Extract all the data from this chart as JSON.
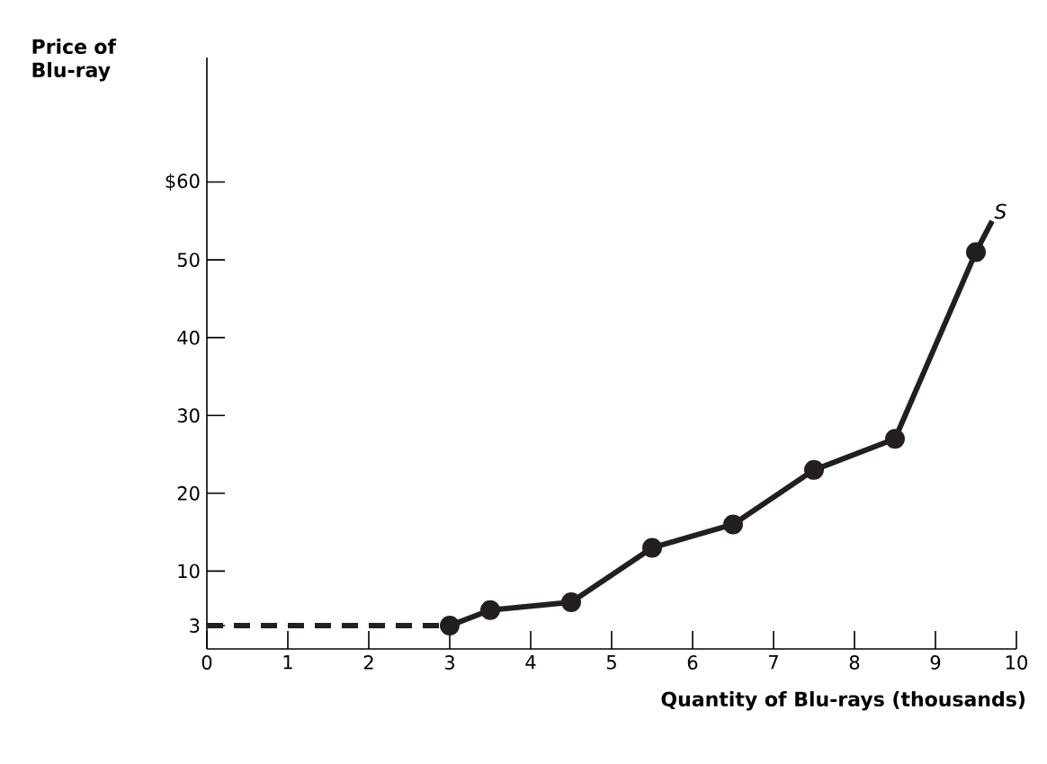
{
  "chart_data": {
    "type": "line",
    "xlabel": "Quantity of Blu-rays (thousands)",
    "ylabel": "Price of Blu-ray",
    "xlim": [
      0,
      10
    ],
    "ylim": [
      0,
      76
    ],
    "xticks": [
      0,
      1,
      2,
      3,
      4,
      5,
      6,
      7,
      8,
      9,
      10
    ],
    "yticks": [
      3,
      10,
      20,
      30,
      40,
      50,
      {
        "value": 60,
        "label": "$60"
      }
    ],
    "series": [
      {
        "x": [
          0,
          3
        ],
        "values": [
          3,
          3
        ],
        "color": "#231f20",
        "line_style": "dashed"
      },
      {
        "x": [
          3,
          3.5,
          4.5,
          5.5,
          6.5,
          7.5,
          8.5,
          9.5
        ],
        "values": [
          3,
          5,
          6,
          13,
          16,
          23,
          27,
          51
        ],
        "color": "#231f20",
        "line_style": "solid",
        "marker": "circle"
      },
      {
        "x": [
          9.5,
          9.7
        ],
        "values": [
          51,
          55
        ],
        "color": "#231f20",
        "line_style": "solid"
      }
    ],
    "annotations": [
      {
        "text": "S",
        "x": 9.7,
        "y": 55
      }
    ]
  }
}
